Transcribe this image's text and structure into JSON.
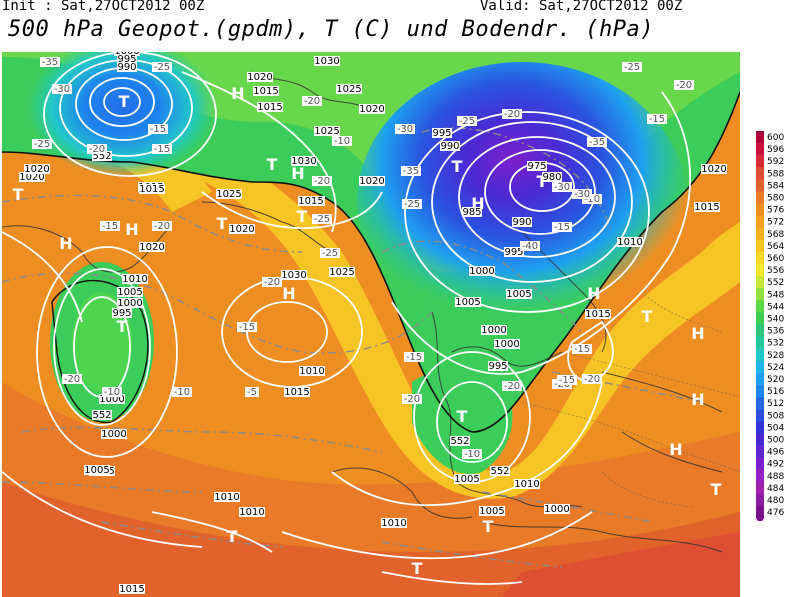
{
  "header": {
    "init": "Init : Sat,27OCT2012 00Z",
    "valid": "Valid: Sat,27OCT2012 00Z",
    "title": "500 hPa Geopot.(gpdm), T (C) und Bodendr. (hPa)"
  },
  "colorbar": {
    "levels": [
      "600",
      "596",
      "592",
      "588",
      "584",
      "580",
      "576",
      "572",
      "568",
      "564",
      "560",
      "556",
      "552",
      "548",
      "544",
      "540",
      "536",
      "532",
      "528",
      "524",
      "520",
      "516",
      "512",
      "508",
      "504",
      "500",
      "496",
      "492",
      "488",
      "484",
      "480",
      "476"
    ],
    "colors": [
      "#b0003a",
      "#c8143c",
      "#d82a3a",
      "#e04a30",
      "#e2622c",
      "#e87a28",
      "#ee8e22",
      "#f2a020",
      "#f4b020",
      "#f6c424",
      "#f8d82a",
      "#f2e830",
      "#c8e83a",
      "#8ee040",
      "#5cd84a",
      "#3ccc5a",
      "#2ec47a",
      "#22c8a0",
      "#22c8c8",
      "#20b8e8",
      "#1ea0f0",
      "#1e84ee",
      "#2468e6",
      "#2a4ede",
      "#3034d6",
      "#4628d2",
      "#6024d0",
      "#7c20cc",
      "#9420c4",
      "#a020b0",
      "#8c1ca0",
      "#780f8c"
    ]
  },
  "map": {
    "highs": [
      "H",
      "H",
      "H",
      "H",
      "H",
      "H",
      "H",
      "H",
      "H",
      "H"
    ],
    "lows": [
      "T",
      "T",
      "T",
      "T",
      "T",
      "T",
      "T",
      "T",
      "T",
      "T",
      "T",
      "T",
      "T",
      "T"
    ],
    "pressure_labels": [
      "1010",
      "1005",
      "1000",
      "995",
      "990",
      "1020",
      "1015",
      "1030",
      "1025",
      "1020",
      "1015",
      "1020",
      "1030",
      "1025",
      "1020",
      "1025",
      "1015",
      "1020",
      "1020",
      "1015",
      "1010",
      "1005",
      "1000",
      "995",
      "1030",
      "1025",
      "1020",
      "1010",
      "1005",
      "1000",
      "995",
      "990",
      "985",
      "975",
      "980",
      "990",
      "995",
      "1000",
      "1005",
      "1010",
      "1015",
      "1005",
      "1000",
      "995",
      "1000",
      "1010",
      "1015",
      "1020",
      "1005",
      "1010",
      "1005",
      "1000",
      "1015",
      "1020",
      "1015",
      "1010",
      "1005",
      "1000",
      "1015",
      "1010"
    ],
    "temperature_labels": [
      "-35",
      "-30",
      "-25",
      "-20",
      "-25",
      "-15",
      "-15",
      "-20",
      "-10",
      "-30",
      "-35",
      "-25",
      "-25",
      "-20",
      "-15",
      "-10",
      "-30",
      "-35",
      "-40",
      "-30",
      "-25",
      "-20",
      "-15",
      "-15",
      "-20",
      "-20",
      "-20",
      "-15",
      "-25",
      "-20",
      "-25",
      "-15",
      "-20",
      "-20",
      "-15",
      "-10",
      "-5",
      "-10",
      "-10",
      "-20",
      "-15",
      "-20"
    ],
    "contour_552": [
      "552",
      "552",
      "552",
      "552"
    ]
  }
}
